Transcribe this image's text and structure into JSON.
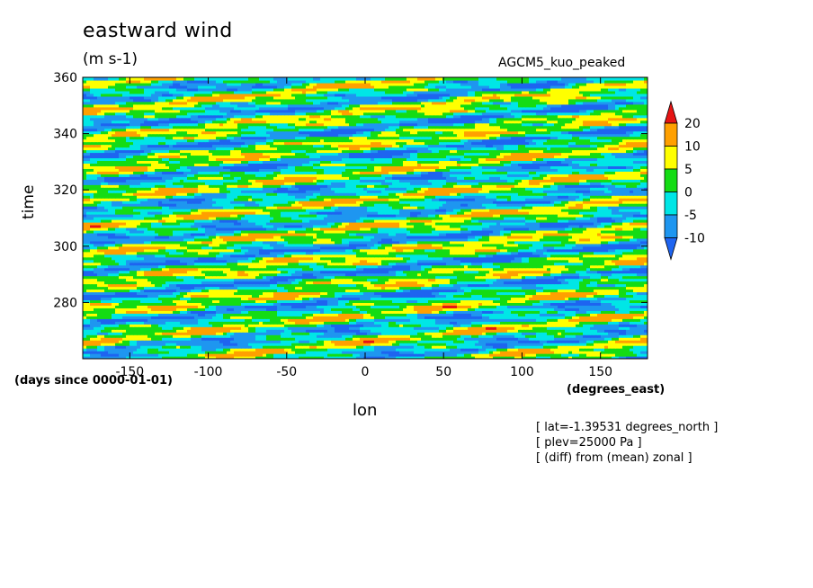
{
  "chart_data": {
    "type": "heatmap",
    "title": "eastward wind",
    "units": "(m s-1)",
    "model": "AGCM5_kuo_peaked",
    "xlabel": "lon",
    "ylabel": "time",
    "x_units": "(degrees_east)",
    "y_units": "(days since 0000-01-01)",
    "xlim": [
      -180,
      180
    ],
    "ylim": [
      260,
      360
    ],
    "x_ticks": [
      -150,
      -100,
      -50,
      0,
      50,
      100,
      150
    ],
    "x_tick_labels": [
      "-150",
      "-100",
      "-50",
      "0",
      "50",
      "100",
      "150"
    ],
    "y_ticks": [
      280,
      300,
      320,
      340,
      360
    ],
    "y_tick_labels": [
      "280",
      "300",
      "320",
      "340",
      "360"
    ],
    "colorbar": {
      "levels": [
        -10,
        -5,
        0,
        5,
        10,
        20
      ],
      "labels": [
        "-10",
        "-5",
        "0",
        "5",
        "10",
        "20"
      ],
      "colors": [
        "#1e64f0",
        "#1e96f0",
        "#00e6e6",
        "#14dc14",
        "#ffff00",
        "#ffa000",
        "#e61414"
      ],
      "extend": "both"
    },
    "annotations": [
      "[ lat=-1.39531 degrees_north ]",
      "[ plev=25000 Pa ]",
      "[ (diff) from (mean) zonal ]"
    ],
    "pattern": "eastward-propagating zonal wind anomaly bands tilted toward later times at larger longitudes"
  }
}
